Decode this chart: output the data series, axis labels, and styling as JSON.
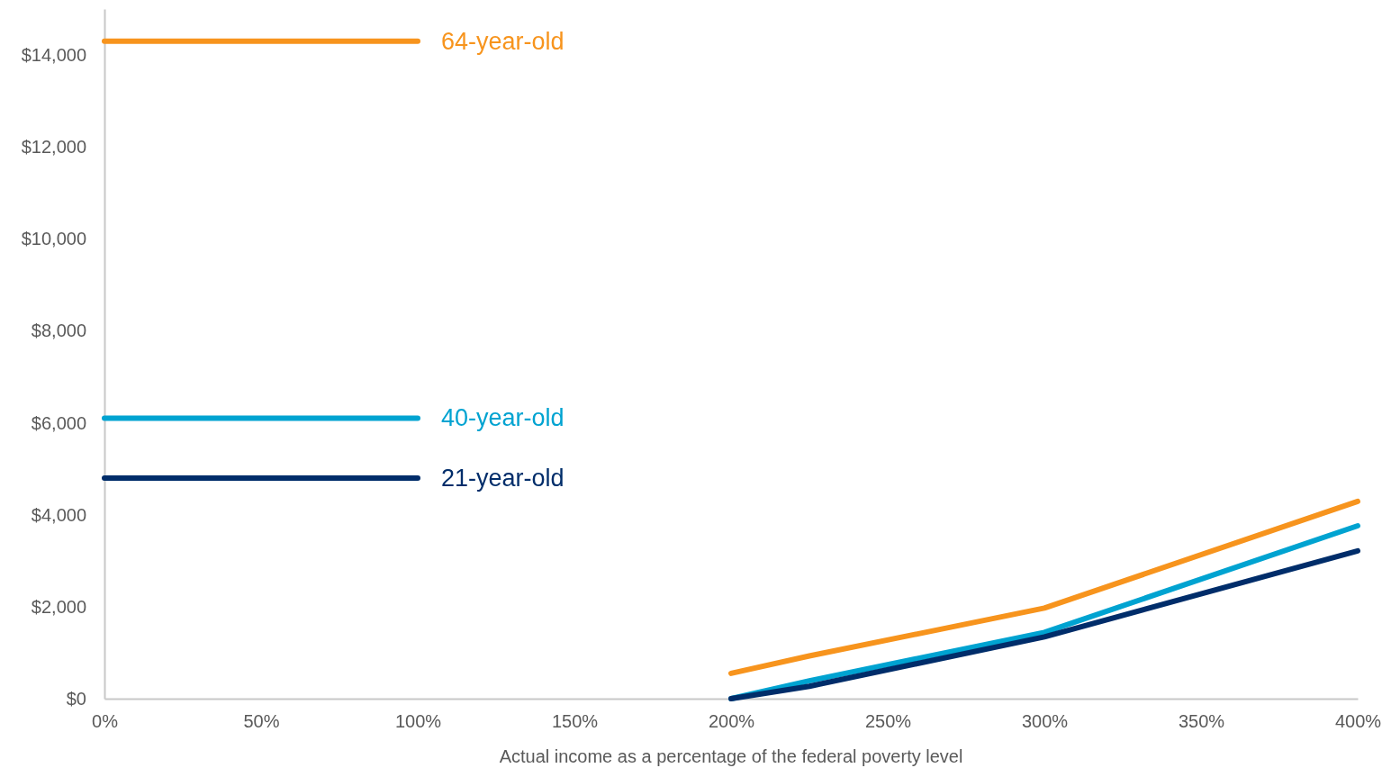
{
  "chart_data": {
    "type": "line",
    "xlabel": "Actual income as a percentage of the federal poverty level",
    "x": [
      0,
      100,
      150,
      200,
      225,
      300,
      400
    ],
    "xlim": [
      0,
      400
    ],
    "xticks": [
      {
        "value": 0,
        "label": "0%"
      },
      {
        "value": 50,
        "label": "50%"
      },
      {
        "value": 100,
        "label": "100%"
      },
      {
        "value": 150,
        "label": "150%"
      },
      {
        "value": 200,
        "label": "200%"
      },
      {
        "value": 250,
        "label": "250%"
      },
      {
        "value": 300,
        "label": "300%"
      },
      {
        "value": 350,
        "label": "350%"
      },
      {
        "value": 400,
        "label": "400%"
      }
    ],
    "ylim": [
      0,
      15000
    ],
    "yticks": [
      {
        "value": 0,
        "label": "$0"
      },
      {
        "value": 2000,
        "label": "$2,000"
      },
      {
        "value": 4000,
        "label": "$4,000"
      },
      {
        "value": 6000,
        "label": "$6,000"
      },
      {
        "value": 8000,
        "label": "$8,000"
      },
      {
        "value": 10000,
        "label": "$10,000"
      },
      {
        "value": 12000,
        "label": "$12,000"
      },
      {
        "value": 14000,
        "label": "$14,000"
      }
    ],
    "grid": false,
    "legend": false,
    "marker": "none",
    "line_style": "solid",
    "series": [
      {
        "name": "64-year-old",
        "color": "#f7941d",
        "values": [
          14300,
          14300,
          null,
          550,
          930,
          1970,
          4290
        ]
      },
      {
        "name": "40-year-old",
        "color": "#00a3d1",
        "values": [
          6100,
          6100,
          null,
          0,
          390,
          1440,
          3760
        ]
      },
      {
        "name": "21-year-old",
        "color": "#002d6a",
        "values": [
          4800,
          4800,
          null,
          0,
          270,
          1345,
          3215
        ]
      }
    ]
  }
}
